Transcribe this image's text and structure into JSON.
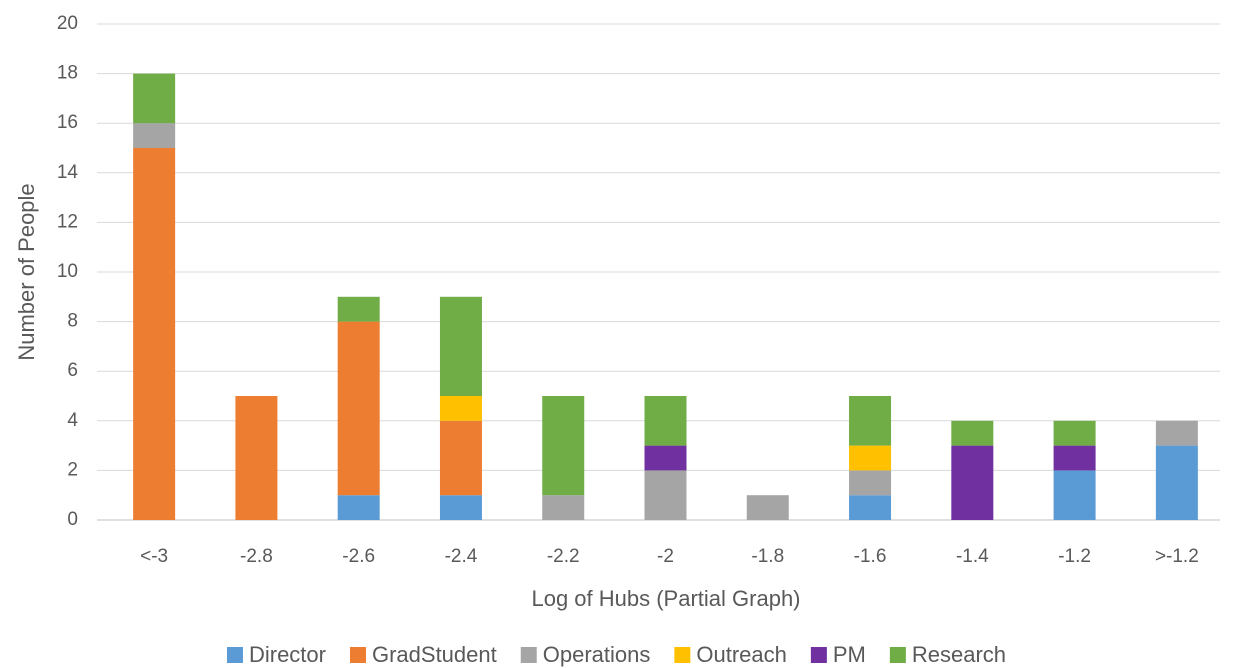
{
  "chart_data": {
    "type": "stacked_bar",
    "x_label": "Log of Hubs (Partial Graph)",
    "y_label": "Number of People",
    "categories": [
      "<-3",
      "-2.8",
      "-2.6",
      "-2.4",
      "-2.2",
      "-2",
      "-1.8",
      "-1.6",
      "-1.4",
      "-1.2",
      ">-1.2"
    ],
    "series": [
      {
        "name": "Director",
        "color": "#5b9bd5",
        "values": [
          0,
          0,
          1,
          1,
          0,
          0,
          0,
          1,
          0,
          2,
          3
        ]
      },
      {
        "name": "GradStudent",
        "color": "#ed7d31",
        "values": [
          15,
          5,
          7,
          3,
          0,
          0,
          0,
          0,
          0,
          0,
          0
        ]
      },
      {
        "name": "Operations",
        "color": "#a5a5a5",
        "values": [
          1,
          0,
          0,
          0,
          1,
          2,
          1,
          1,
          0,
          0,
          1
        ]
      },
      {
        "name": "Outreach",
        "color": "#ffc000",
        "values": [
          0,
          0,
          0,
          1,
          0,
          0,
          0,
          1,
          0,
          0,
          0
        ]
      },
      {
        "name": "PM",
        "color": "#7030a0",
        "values": [
          0,
          0,
          0,
          0,
          0,
          1,
          0,
          0,
          3,
          1,
          0
        ]
      },
      {
        "name": "Research",
        "color": "#70ad47",
        "values": [
          2,
          0,
          1,
          4,
          4,
          2,
          0,
          2,
          1,
          1,
          0
        ]
      }
    ],
    "ylim": [
      0,
      20
    ],
    "yticks": [
      0,
      2,
      4,
      6,
      8,
      10,
      12,
      14,
      16,
      18,
      20
    ],
    "grid": true,
    "legend": "bottom"
  }
}
